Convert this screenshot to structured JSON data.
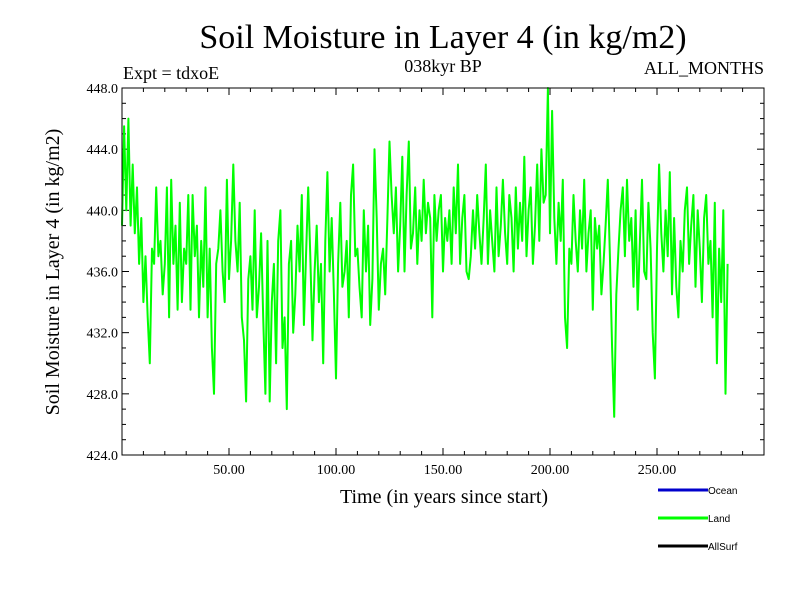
{
  "chart_data": {
    "type": "line",
    "title": "Soil Moisture in Layer 4 (in kg/m2)",
    "subtitle": "038kyr BP",
    "annotation_left": "Expt = tdxoE",
    "annotation_right": "ALL_MONTHS",
    "xlabel": "Time (in years since start)",
    "ylabel": "Soil Moisture in Layer 4 (in kg/m2)",
    "xlim": [
      0,
      300
    ],
    "ylim": [
      424,
      448
    ],
    "x_ticks": [
      50,
      100,
      150,
      200,
      250
    ],
    "x_tick_labels": [
      "50.00",
      "100.00",
      "150.00",
      "200.00",
      "250.00"
    ],
    "y_ticks": [
      424,
      428,
      432,
      436,
      440,
      444,
      448
    ],
    "y_tick_labels": [
      "424.0",
      "428.0",
      "432.0",
      "436.0",
      "440.0",
      "444.0",
      "448.0"
    ],
    "legend": [
      "Ocean",
      "Land",
      "AllSurf"
    ],
    "legend_position": "bottom-right",
    "series": [
      {
        "name": "Land",
        "color": "#00ff00",
        "x_start": 0,
        "x_step": 1,
        "values": [
          439.0,
          445.5,
          440.0,
          446.0,
          439.0,
          443.0,
          438.5,
          441.5,
          436.5,
          439.5,
          434.0,
          437.0,
          433.0,
          430.0,
          437.5,
          436.5,
          441.5,
          437.0,
          438.0,
          434.5,
          436.5,
          441.5,
          433.0,
          442.0,
          436.5,
          439.0,
          433.5,
          440.5,
          434.0,
          437.5,
          436.5,
          441.0,
          433.5,
          441.0,
          437.0,
          439.0,
          433.0,
          438.0,
          435.0,
          441.5,
          433.0,
          437.5,
          431.0,
          428.0,
          436.5,
          437.5,
          440.0,
          436.0,
          434.0,
          442.0,
          435.5,
          438.0,
          443.0,
          438.0,
          436.0,
          440.5,
          433.0,
          431.5,
          427.5,
          435.5,
          437.0,
          433.5,
          440.0,
          433.0,
          435.0,
          438.5,
          433.0,
          428.0,
          438.0,
          427.5,
          434.0,
          436.5,
          430.0,
          438.0,
          440.0,
          431.0,
          433.0,
          427.0,
          436.5,
          438.0,
          432.0,
          434.5,
          439.0,
          436.0,
          441.0,
          432.5,
          437.0,
          441.5,
          437.0,
          431.5,
          436.0,
          439.0,
          434.0,
          436.5,
          430.0,
          438.0,
          442.5,
          436.0,
          439.5,
          434.5,
          429.0,
          436.5,
          440.5,
          435.0,
          436.0,
          438.0,
          433.0,
          441.0,
          443.0,
          437.0,
          437.5,
          435.0,
          433.0,
          440.0,
          436.0,
          439.0,
          432.5,
          435.5,
          444.0,
          439.5,
          433.5,
          436.5,
          437.5,
          434.5,
          439.5,
          444.5,
          441.0,
          438.5,
          441.5,
          436.0,
          439.0,
          443.5,
          436.0,
          441.0,
          444.5,
          437.5,
          438.5,
          441.5,
          436.5,
          440.0,
          438.0,
          442.0,
          438.5,
          440.5,
          439.5,
          433.0,
          441.0,
          438.0,
          440.0,
          441.0,
          436.0,
          439.5,
          438.0,
          440.0,
          436.5,
          441.5,
          438.5,
          443.0,
          436.5,
          439.5,
          441.0,
          436.0,
          435.5,
          437.0,
          440.0,
          437.5,
          441.0,
          438.5,
          436.5,
          439.5,
          443.0,
          436.5,
          440.0,
          438.0,
          436.0,
          441.5,
          437.0,
          439.0,
          442.0,
          438.5,
          436.5,
          441.0,
          439.5,
          436.0,
          441.5,
          437.5,
          440.5,
          438.0,
          443.5,
          437.0,
          440.0,
          441.5,
          436.5,
          439.0,
          443.0,
          438.0,
          444.0,
          440.5,
          441.0,
          448.0,
          438.5,
          446.5,
          439.5,
          436.5,
          440.5,
          438.0,
          442.0,
          433.0,
          431.0,
          437.5,
          436.5,
          441.0,
          438.0,
          436.0,
          440.0,
          437.5,
          442.0,
          436.0,
          438.5,
          440.0,
          433.5,
          439.5,
          437.5,
          439.0,
          434.5,
          436.5,
          439.0,
          442.0,
          437.0,
          431.0,
          426.5,
          434.5,
          437.5,
          440.0,
          441.5,
          437.0,
          442.0,
          438.0,
          439.5,
          435.0,
          440.0,
          433.5,
          438.0,
          442.0,
          436.0,
          435.5,
          440.5,
          437.5,
          432.0,
          429.0,
          437.5,
          443.0,
          438.5,
          436.0,
          440.0,
          437.0,
          442.5,
          434.5,
          439.5,
          435.0,
          433.0,
          438.0,
          436.0,
          440.0,
          441.5,
          436.5,
          439.0,
          441.0,
          435.0,
          440.0,
          437.5,
          434.0,
          439.5,
          441.0,
          436.5,
          438.0,
          433.0,
          440.5,
          430.0,
          437.5,
          434.0,
          440.0,
          428.0,
          436.5
        ]
      },
      {
        "name": "Ocean",
        "color": "#0000cc",
        "values": []
      },
      {
        "name": "AllSurf",
        "color": "#000000",
        "values": []
      }
    ]
  }
}
